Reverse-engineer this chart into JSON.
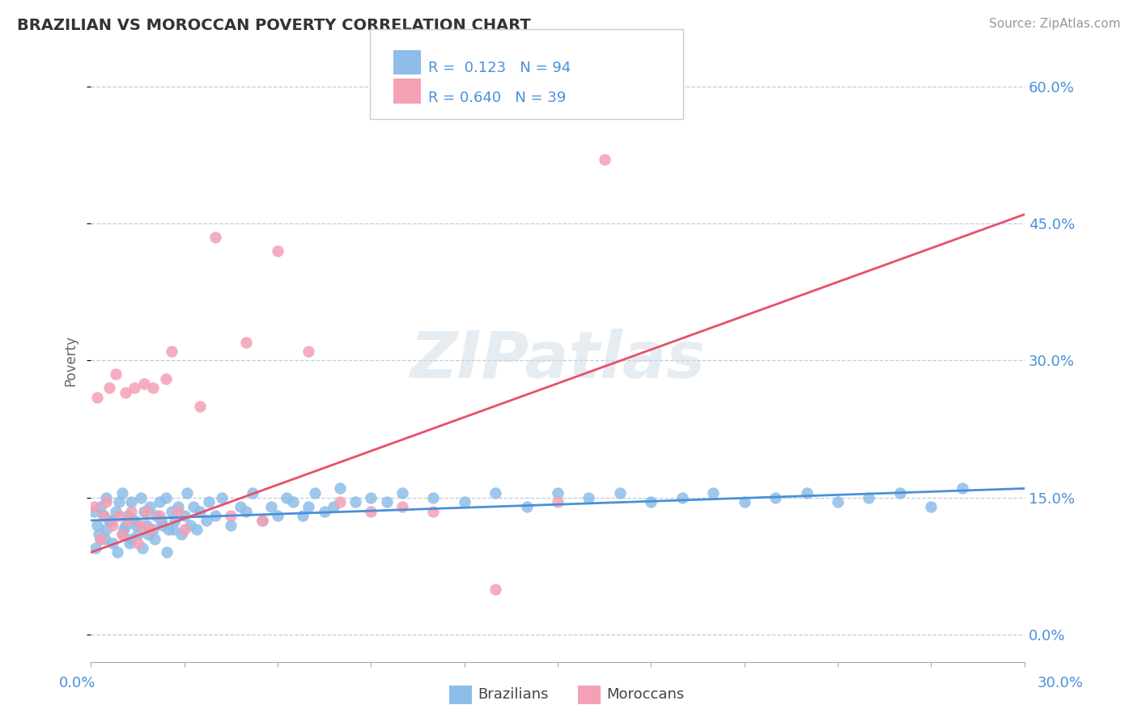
{
  "title": "BRAZILIAN VS MOROCCAN POVERTY CORRELATION CHART",
  "source": "Source: ZipAtlas.com",
  "ylabel": "Poverty",
  "yticks_right_vals": [
    0.0,
    15.0,
    30.0,
    45.0,
    60.0
  ],
  "xmin": 0.0,
  "xmax": 30.0,
  "ymin": -3.0,
  "ymax": 63.0,
  "brazil_color": "#8dbde8",
  "morocco_color": "#f4a0b5",
  "brazil_line_color": "#4a90d9",
  "morocco_line_color": "#e8506a",
  "watermark": "ZIPatlas",
  "background_color": "#ffffff",
  "grid_color": "#b8cfe0",
  "brazil_x": [
    0.1,
    0.2,
    0.3,
    0.3,
    0.4,
    0.5,
    0.5,
    0.6,
    0.7,
    0.8,
    0.9,
    1.0,
    1.0,
    1.1,
    1.2,
    1.3,
    1.3,
    1.4,
    1.5,
    1.6,
    1.7,
    1.8,
    1.9,
    2.0,
    2.1,
    2.2,
    2.3,
    2.4,
    2.5,
    2.6,
    2.7,
    2.8,
    2.9,
    3.0,
    3.1,
    3.2,
    3.3,
    3.4,
    3.5,
    3.7,
    3.8,
    4.0,
    4.2,
    4.5,
    4.8,
    5.0,
    5.2,
    5.5,
    5.8,
    6.0,
    6.3,
    6.5,
    6.8,
    7.0,
    7.2,
    7.5,
    7.8,
    8.0,
    8.5,
    9.0,
    9.5,
    10.0,
    11.0,
    12.0,
    13.0,
    14.0,
    15.0,
    16.0,
    17.0,
    18.0,
    19.0,
    20.0,
    21.0,
    22.0,
    23.0,
    24.0,
    25.0,
    26.0,
    27.0,
    28.0,
    0.15,
    0.25,
    0.45,
    0.65,
    0.85,
    1.05,
    1.25,
    1.45,
    1.65,
    1.85,
    2.05,
    2.25,
    2.45,
    2.65
  ],
  "brazil_y": [
    13.5,
    12.0,
    14.0,
    10.5,
    13.0,
    11.5,
    15.0,
    12.5,
    10.0,
    13.5,
    14.5,
    11.0,
    15.5,
    12.0,
    13.0,
    10.5,
    14.5,
    12.5,
    11.0,
    15.0,
    13.5,
    12.0,
    14.0,
    11.5,
    13.0,
    14.5,
    12.0,
    15.0,
    11.5,
    13.5,
    12.5,
    14.0,
    11.0,
    13.0,
    15.5,
    12.0,
    14.0,
    11.5,
    13.5,
    12.5,
    14.5,
    13.0,
    15.0,
    12.0,
    14.0,
    13.5,
    15.5,
    12.5,
    14.0,
    13.0,
    15.0,
    14.5,
    13.0,
    14.0,
    15.5,
    13.5,
    14.0,
    16.0,
    14.5,
    15.0,
    14.5,
    15.5,
    15.0,
    14.5,
    15.5,
    14.0,
    15.5,
    15.0,
    15.5,
    14.5,
    15.0,
    15.5,
    14.5,
    15.0,
    15.5,
    14.5,
    15.0,
    15.5,
    14.0,
    16.0,
    9.5,
    11.0,
    10.5,
    12.5,
    9.0,
    11.5,
    10.0,
    12.0,
    9.5,
    11.0,
    10.5,
    12.5,
    9.0,
    11.5
  ],
  "morocco_x": [
    0.1,
    0.2,
    0.3,
    0.4,
    0.5,
    0.6,
    0.7,
    0.8,
    0.9,
    1.0,
    1.1,
    1.2,
    1.3,
    1.4,
    1.5,
    1.6,
    1.7,
    1.8,
    1.9,
    2.0,
    2.2,
    2.4,
    2.6,
    2.8,
    3.0,
    3.5,
    4.0,
    4.5,
    5.0,
    5.5,
    6.0,
    7.0,
    8.0,
    9.0,
    10.0,
    11.0,
    13.0,
    15.0,
    16.5
  ],
  "morocco_y": [
    14.0,
    26.0,
    10.5,
    13.0,
    14.5,
    27.0,
    12.0,
    28.5,
    13.0,
    11.0,
    26.5,
    12.5,
    13.5,
    27.0,
    10.0,
    12.0,
    27.5,
    13.5,
    11.5,
    27.0,
    13.0,
    28.0,
    31.0,
    13.5,
    11.5,
    25.0,
    43.5,
    13.0,
    32.0,
    12.5,
    42.0,
    31.0,
    14.5,
    13.5,
    14.0,
    13.5,
    5.0,
    14.5,
    52.0
  ]
}
